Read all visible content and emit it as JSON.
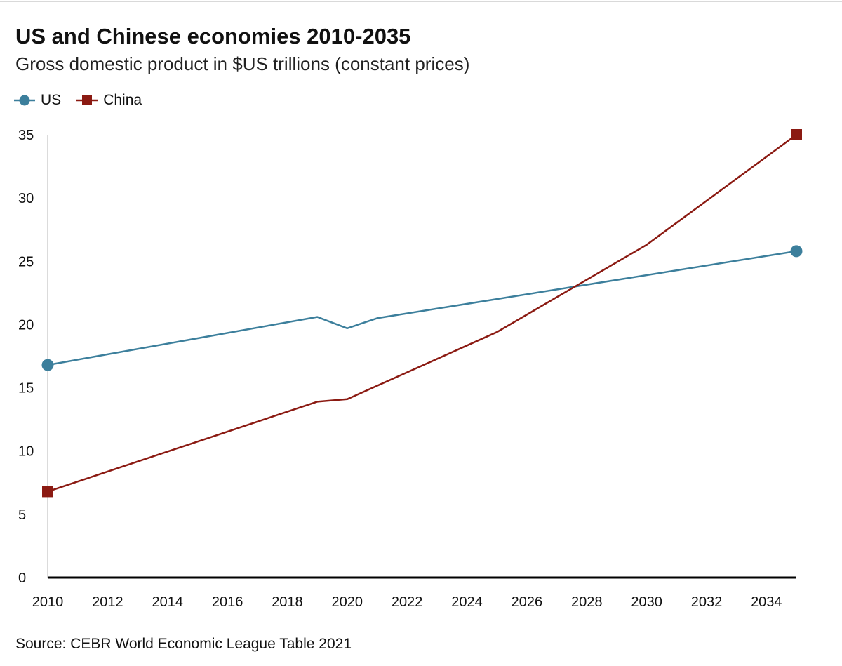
{
  "header": {
    "title": "US and Chinese economies 2010-2035",
    "subtitle": "Gross domestic product in $US trillions (constant prices)"
  },
  "source": "Source: CEBR World Economic League Table 2021",
  "colors": {
    "us": "#3c7f9c",
    "china": "#8b1a12",
    "axis": "#000000",
    "grid": "#e0e0e0",
    "text": "#111111"
  },
  "chart_data": {
    "type": "line",
    "title": "US and Chinese economies 2010-2035",
    "subtitle": "Gross domestic product in $US trillions (constant prices)",
    "xlabel": "",
    "ylabel": "",
    "xlim": [
      2010,
      2035
    ],
    "ylim": [
      0,
      35
    ],
    "xticks": [
      2010,
      2012,
      2014,
      2016,
      2018,
      2020,
      2022,
      2024,
      2026,
      2028,
      2030,
      2032,
      2034
    ],
    "yticks": [
      0,
      5,
      10,
      15,
      20,
      25,
      30,
      35
    ],
    "grid": false,
    "legend_position": "top-left",
    "series": [
      {
        "name": "US",
        "marker": "circle",
        "color": "#3c7f9c",
        "points": [
          {
            "x": 2010,
            "y": 16.8
          },
          {
            "x": 2019,
            "y": 20.6
          },
          {
            "x": 2020,
            "y": 19.7
          },
          {
            "x": 2021,
            "y": 20.5
          },
          {
            "x": 2035,
            "y": 25.8
          }
        ]
      },
      {
        "name": "China",
        "marker": "square",
        "color": "#8b1a12",
        "points": [
          {
            "x": 2010,
            "y": 6.8
          },
          {
            "x": 2019,
            "y": 13.9
          },
          {
            "x": 2020,
            "y": 14.1
          },
          {
            "x": 2025,
            "y": 19.4
          },
          {
            "x": 2030,
            "y": 26.3
          },
          {
            "x": 2035,
            "y": 35.0
          }
        ]
      }
    ]
  }
}
